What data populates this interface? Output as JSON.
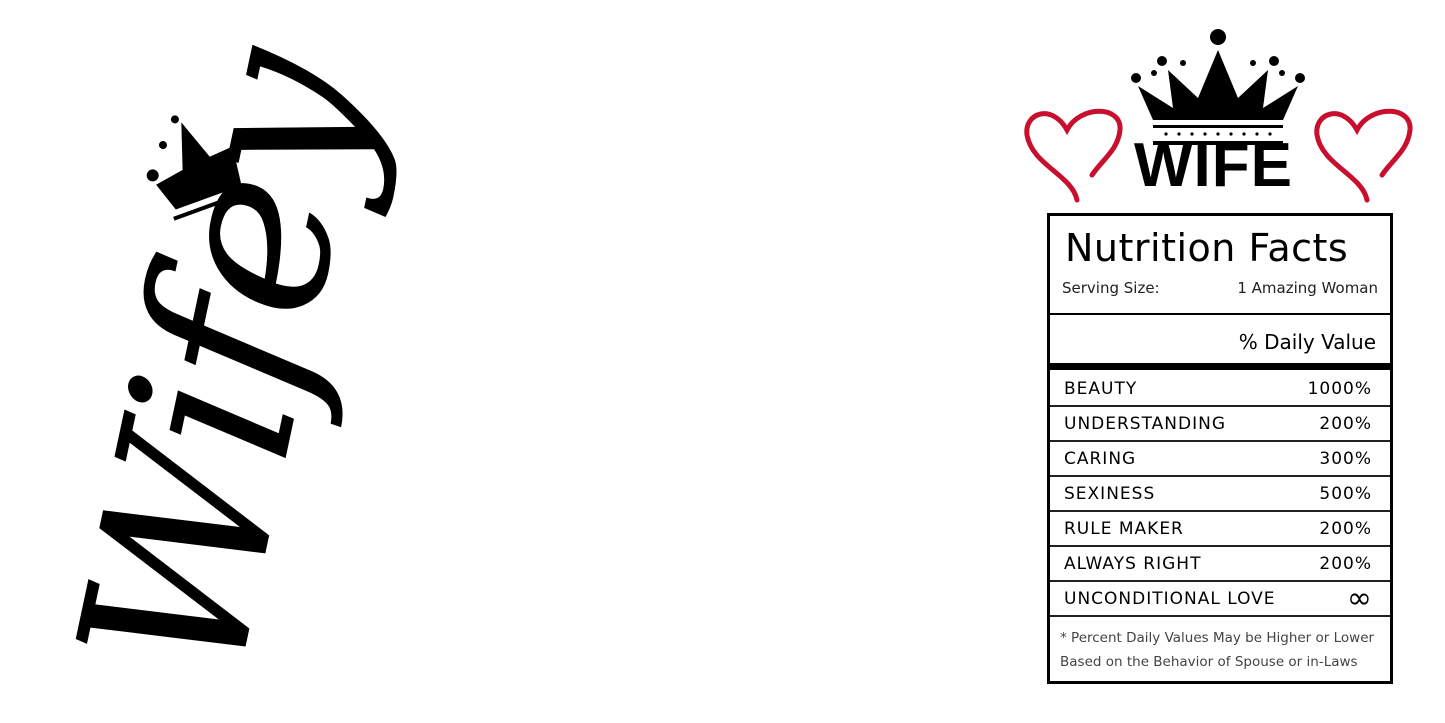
{
  "script_word": "Wifey",
  "title": "WIFE",
  "label": {
    "heading": "Nutrition Facts",
    "serving_label": "Serving Size:",
    "serving_value": "1 Amazing Woman",
    "daily_value_header": "% Daily Value",
    "rows": [
      {
        "name": "BEAUTY",
        "value": "1000%"
      },
      {
        "name": "UNDERSTANDING",
        "value": "200%"
      },
      {
        "name": "CARING",
        "value": "300%"
      },
      {
        "name": "SEXINESS",
        "value": "500%"
      },
      {
        "name": "RULE MAKER",
        "value": "200%"
      },
      {
        "name": "ALWAYS RIGHT",
        "value": "200%"
      },
      {
        "name": "UNCONDITIONAL LOVE",
        "value": "∞"
      }
    ],
    "footnote_line1": "* Percent Daily Values May be Higher or Lower",
    "footnote_line2": "Based on the Behavior of Spouse or in-Laws"
  },
  "colors": {
    "heart": "#c8102e",
    "ink": "#000000"
  },
  "icons": [
    "crown-icon",
    "heart-icon",
    "infinity-icon"
  ]
}
